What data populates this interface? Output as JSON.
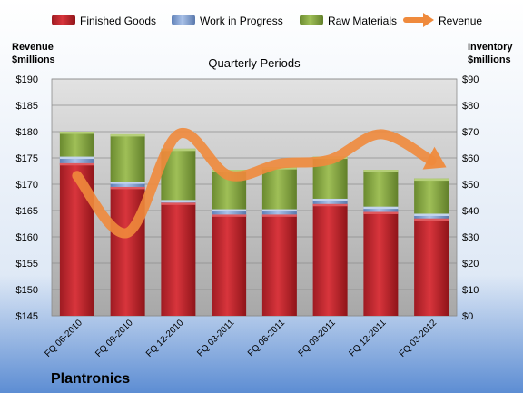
{
  "company": "Plantronics",
  "colors": {
    "finished_goods": "#c8232a",
    "work_in_progress": "#7f9ccd",
    "raw_materials": "#8bab45",
    "revenue": "#ef8a3c"
  },
  "chart_data": {
    "type": "bar",
    "title": "Quarterly Periods",
    "left_axis_title": [
      "Revenue",
      "$millions"
    ],
    "right_axis_title": [
      "Inventory",
      "$millions"
    ],
    "left_ylim": [
      145,
      190
    ],
    "left_ticks": [
      145,
      150,
      155,
      160,
      165,
      170,
      175,
      180,
      185,
      190
    ],
    "left_tick_labels": [
      "$145",
      "$150",
      "$155",
      "$160",
      "$165",
      "$170",
      "$175",
      "$180",
      "$185",
      "$190"
    ],
    "right_ylim": [
      0,
      90
    ],
    "right_ticks": [
      0,
      10,
      20,
      30,
      40,
      50,
      60,
      70,
      80,
      90
    ],
    "right_tick_labels": [
      "$0",
      "$10",
      "$20",
      "$30",
      "$40",
      "$50",
      "$60",
      "$70",
      "$80",
      "$90"
    ],
    "categories": [
      "FQ 06-2010",
      "FQ 09-2010",
      "FQ 12-2010",
      "FQ 03-2011",
      "FQ 06-2011",
      "FQ 09-2011",
      "FQ 12-2011",
      "FQ 03-2012"
    ],
    "legend_position": "top",
    "grid": true,
    "series": [
      {
        "name": "Finished Goods",
        "axis": "right",
        "stack": true,
        "values": [
          58,
          49,
          43,
          38.5,
          38.5,
          42.5,
          39.5,
          37
        ]
      },
      {
        "name": "Work in Progress",
        "axis": "right",
        "stack": true,
        "values": [
          2.5,
          2,
          1,
          2,
          2,
          2,
          2,
          1.8
        ]
      },
      {
        "name": "Raw Materials",
        "axis": "right",
        "stack": true,
        "values": [
          9.5,
          18,
          19.5,
          15,
          16,
          16,
          14,
          13.4
        ]
      },
      {
        "name": "Revenue",
        "axis": "left",
        "type": "line",
        "values": [
          171.6,
          160.8,
          179.5,
          171.7,
          173.9,
          174.7,
          179.5,
          174.5
        ]
      }
    ]
  }
}
